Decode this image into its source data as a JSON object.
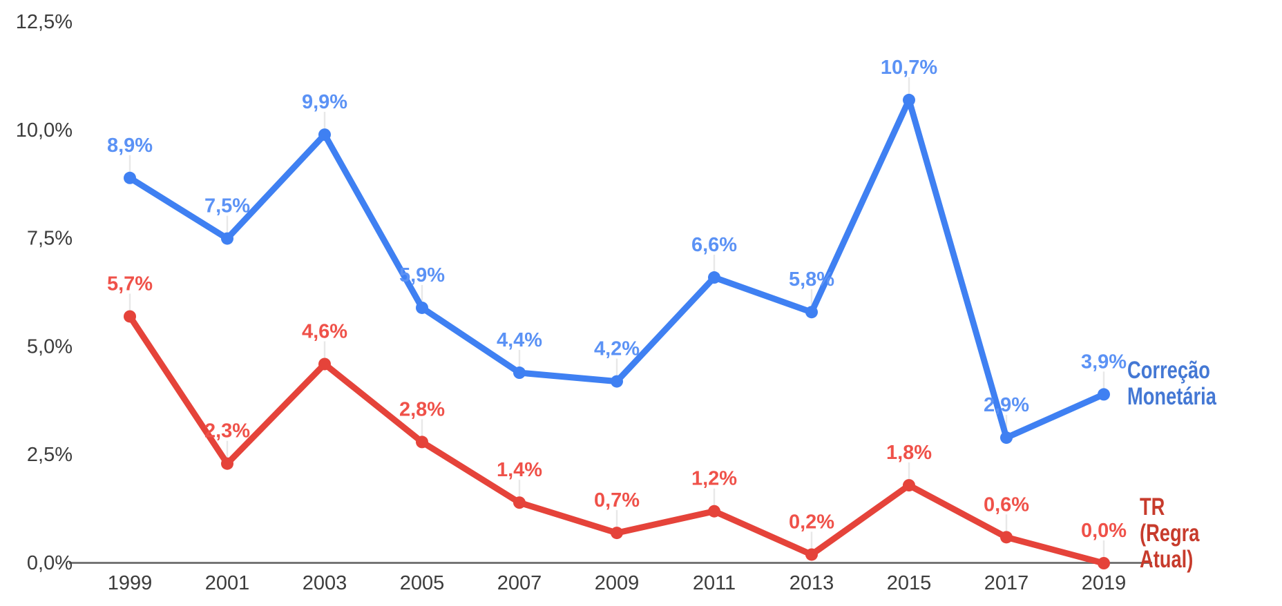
{
  "chart_data": {
    "type": "line",
    "categories": [
      "1999",
      "2001",
      "2003",
      "2005",
      "2007",
      "2009",
      "2011",
      "2013",
      "2015",
      "2017",
      "2019"
    ],
    "series": [
      {
        "name": "Correção Monetária",
        "values": [
          8.9,
          7.5,
          9.9,
          5.9,
          4.4,
          4.2,
          6.6,
          5.8,
          10.7,
          2.9,
          3.9
        ],
        "labels": [
          "8,9%",
          "7,5%",
          "9,9%",
          "5,9%",
          "4,4%",
          "4,2%",
          "6,6%",
          "5,8%",
          "10,7%",
          "2,9%",
          "3,9%"
        ],
        "line_color": "#3f80f2",
        "label_color": "#5b92f5"
      },
      {
        "name": "TR (Regra Atual)",
        "values": [
          5.7,
          2.3,
          4.6,
          2.8,
          1.4,
          0.7,
          1.2,
          0.2,
          1.8,
          0.6,
          0.0
        ],
        "labels": [
          "5,7%",
          "2,3%",
          "4,6%",
          "2,8%",
          "1,4%",
          "0,7%",
          "1,2%",
          "0,2%",
          "1,8%",
          "0,6%",
          "0,0%"
        ],
        "line_color": "#e5433a",
        "label_color": "#ef5149"
      }
    ],
    "y_axis": {
      "ticks": [
        "0,0%",
        "2,5%",
        "5,0%",
        "7,5%",
        "10,0%",
        "12,5%"
      ],
      "tick_values": [
        0,
        2.5,
        5,
        7.5,
        10,
        12.5
      ],
      "min": 0,
      "max": 12.5
    },
    "x_axis": {
      "ticks": [
        "1999",
        "2001",
        "2003",
        "2005",
        "2007",
        "2009",
        "2011",
        "2013",
        "2015",
        "2017",
        "2019"
      ]
    },
    "grid": false,
    "legend_position": "right-of-last-point",
    "colors": {
      "axis_line": "#757575",
      "tick_text": "#3c3c3c",
      "leader_line": "#e8e8e8",
      "blue_legend_text": "#4478d4",
      "red_legend_text": "#c73b2c"
    }
  },
  "legend": {
    "correcao": {
      "text": "Correção\nMonetária"
    },
    "tr": {
      "text": "TR\n(Regra Atual)"
    }
  }
}
